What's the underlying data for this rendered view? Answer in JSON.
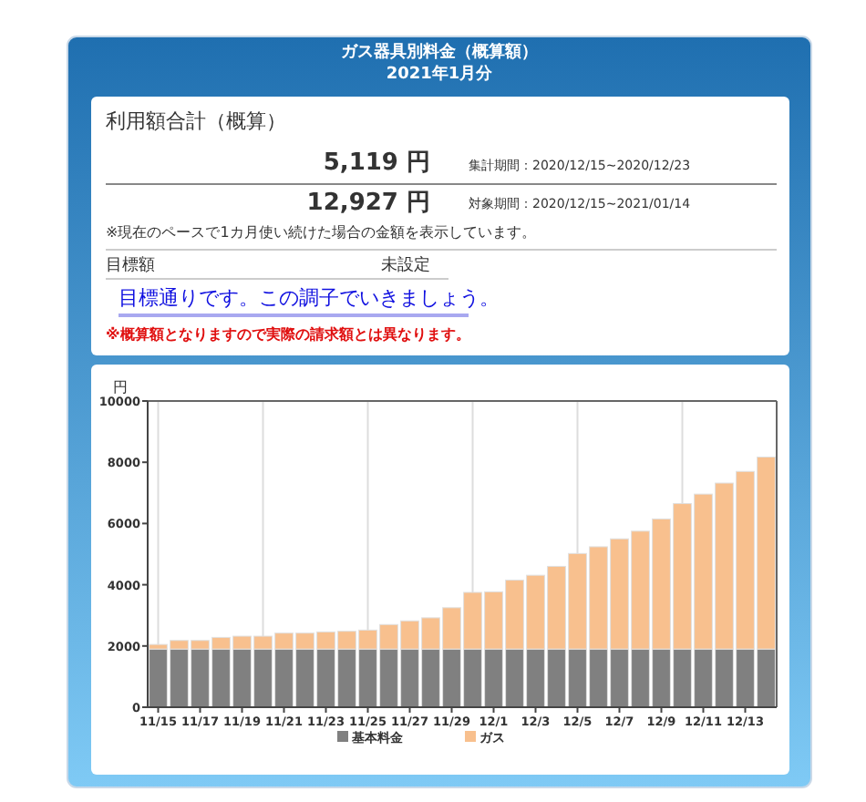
{
  "chart_data": [
    {
      "type": "other",
      "title": "ガス器具別料金（概算額）",
      "subtitle": "2021年1月分",
      "annotations": [
        "利用額合計（概算）",
        "5,119 円",
        "集計期間：2020/12/15~2020/12/23",
        "12,927 円",
        "対象期間：2020/12/15~2021/01/14",
        "※現在のペースで1カ月使い続けた場合の金額を表示しています。",
        "目標額",
        "未設定",
        "目標通りです。この調子でいきましょう。",
        "※概算額となりますので実際の請求額とは異なります。"
      ]
    },
    {
      "type": "bar",
      "stacked": true,
      "ylabel": "円",
      "legend": "bottom",
      "grid": "x",
      "categories": [
        "11/15",
        null,
        "11/17",
        null,
        "11/19",
        null,
        "11/21",
        null,
        "11/23",
        null,
        "11/25",
        null,
        "11/27",
        null,
        "11/29",
        null,
        "12/1",
        null,
        "12/3",
        null,
        "12/5",
        null,
        "12/7",
        null,
        "12/9",
        null,
        "12/11",
        null,
        "12/13",
        null
      ],
      "ylim": [
        0,
        10000
      ],
      "yticks": [
        0,
        2000,
        4000,
        6000,
        8000,
        10000
      ],
      "series": [
        {
          "name": "基本料金",
          "color": "#808080",
          "values": [
            1900,
            1900,
            1900,
            1900,
            1900,
            1900,
            1900,
            1900,
            1900,
            1900,
            1900,
            1900,
            1900,
            1900,
            1900,
            1900,
            1900,
            1900,
            1900,
            1900,
            1900,
            1900,
            1900,
            1900,
            1900,
            1900,
            1900,
            1900,
            1900,
            1900
          ]
        },
        {
          "name": "ガス",
          "color": "#f8c08e",
          "values": [
            150,
            280,
            280,
            380,
            420,
            420,
            520,
            520,
            560,
            580,
            620,
            800,
            920,
            1020,
            1350,
            1850,
            1870,
            2250,
            2410,
            2700,
            3120,
            3340,
            3600,
            3850,
            4250,
            4750,
            5060,
            5420,
            5800,
            6270
          ]
        }
      ]
    }
  ]
}
